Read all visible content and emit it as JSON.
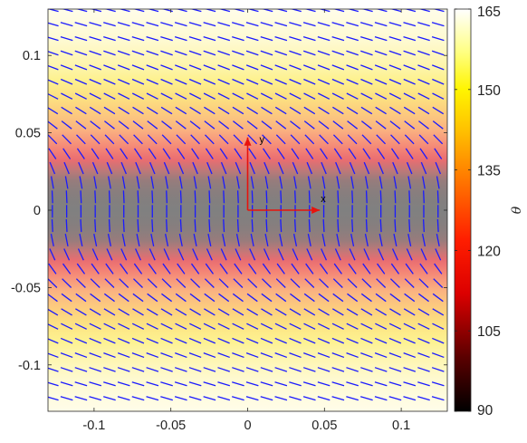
{
  "chart_data": {
    "type": "heatmap",
    "title": "",
    "xlabel": "",
    "ylabel": "",
    "xlim": [
      -0.13,
      0.13
    ],
    "ylim": [
      -0.13,
      0.13
    ],
    "x_ticks": [
      "-0.1",
      "-0.05",
      "0",
      "0.05",
      "0.1"
    ],
    "x_tick_values": [
      -0.1,
      -0.05,
      0,
      0.05,
      0.1
    ],
    "y_ticks": [
      "0.1",
      "0.05",
      "0",
      "-0.05",
      "-0.1"
    ],
    "y_tick_values": [
      0.1,
      0.05,
      0,
      -0.05,
      -0.1
    ],
    "field": {
      "variable": "θ",
      "depends_on": "y",
      "y_samples": [
        0,
        0.01,
        0.02,
        0.03,
        0.04,
        0.05,
        0.06,
        0.07,
        0.08,
        0.09,
        0.1,
        0.11,
        0.12,
        0.13
      ],
      "theta_values": [
        90,
        93,
        102,
        116,
        128,
        138,
        145,
        151,
        155,
        158,
        160,
        162,
        163,
        164
      ],
      "symmetric_about_y0": true,
      "director_field": {
        "color": "#1a1aff",
        "grid_spacing": [
          0.0093,
          0.0093
        ],
        "orientation": "segments tilt by angle θ; vertical at y=0, near-horizontal at |y|≈0.13"
      }
    },
    "colorbar": {
      "label": "θ",
      "colormap": "gray → black → red → orange → yellow → white",
      "range": [
        90,
        165
      ],
      "ticks": [
        90,
        105,
        120,
        135,
        150,
        165
      ],
      "tick_labels": [
        "90",
        "105",
        "120",
        "135",
        "150",
        "165"
      ],
      "note": "heatmap shading shows gray at θ≈90 near y=0, fading through red to pale yellow"
    },
    "annotations": [
      {
        "text": "x",
        "type": "axis-arrow",
        "from": [
          0,
          0
        ],
        "to": [
          0.047,
          0
        ],
        "color": "#e8120c"
      },
      {
        "text": "y",
        "type": "axis-arrow",
        "from": [
          0,
          0
        ],
        "to": [
          0,
          0.047
        ],
        "color": "#e8120c"
      }
    ],
    "grid": false
  }
}
